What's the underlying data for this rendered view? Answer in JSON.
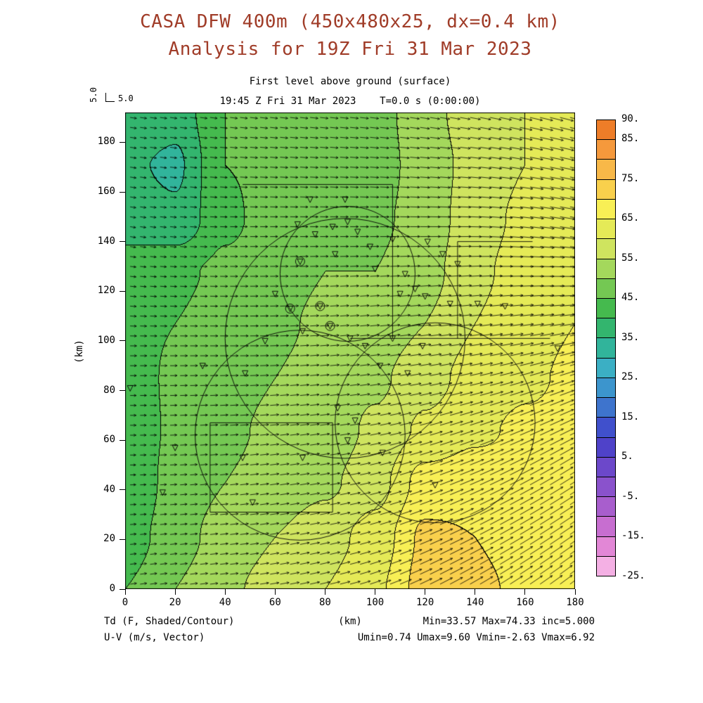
{
  "header": {
    "title": "CASA DFW 400m (450x480x25, dx=0.4 km)",
    "subtitle": "Analysis for 19Z Fri 31 Mar 2023",
    "level_line": "First level above ground (surface)",
    "time_line": "19:45 Z Fri 31 Mar 2023    T=0.0 s (0:00:00)",
    "title_color": "#a03c28"
  },
  "vector_key": {
    "vertical_label": "5.0",
    "horizontal_label": "5.0",
    "reference_speed_ms": 5.0
  },
  "axes": {
    "x_label": "(km)",
    "y_label": "(km)",
    "x_ticks": [
      0,
      20,
      40,
      60,
      80,
      100,
      120,
      140,
      160,
      180
    ],
    "y_ticks": [
      0,
      20,
      40,
      60,
      80,
      100,
      120,
      140,
      160,
      180
    ],
    "x_range": [
      0,
      180
    ],
    "y_range": [
      0,
      192
    ]
  },
  "footer": {
    "field_label": "Td (F, Shaded/Contour)",
    "vector_label": "U-V (m/s, Vector)",
    "x_unit": "(km)",
    "stats_line1": "Min=33.57 Max=74.33 inc=5.000",
    "stats_line2": "Umin=0.74 Umax=9.60 Vmin=-2.63 Vmax=6.92"
  },
  "chart_data": {
    "type": "heatmap",
    "title": "CASA DFW 400m (450x480x25, dx=0.4 km)",
    "subtitle": "Analysis for 19Z Fri 31 Mar 2023",
    "xlabel": "(km)",
    "ylabel": "(km)",
    "xlim": [
      0,
      180
    ],
    "ylim": [
      0,
      192
    ],
    "legend_position": "right-colorbar",
    "grid": false,
    "field": {
      "name": "Td",
      "units": "F",
      "min": 33.57,
      "max": 74.33,
      "contour_interval": 5.0,
      "x": [
        0,
        20,
        40,
        60,
        80,
        100,
        120,
        140,
        160,
        180
      ],
      "y": [
        0,
        21,
        43,
        64,
        85,
        107,
        128,
        149,
        171,
        192
      ],
      "values": [
        [
          45,
          50,
          54,
          57,
          60,
          64,
          72,
          71,
          69,
          69
        ],
        [
          42,
          48,
          52,
          55,
          58,
          62,
          71,
          70,
          68,
          69
        ],
        [
          40,
          47,
          50,
          52,
          54,
          58,
          67,
          68,
          67,
          68
        ],
        [
          41,
          46,
          49,
          51,
          52,
          56,
          61,
          64,
          66,
          67
        ],
        [
          42,
          46,
          48,
          50,
          52,
          54,
          58,
          62,
          64,
          66
        ],
        [
          43,
          45,
          47,
          49,
          51,
          52,
          55,
          60,
          63,
          65
        ],
        [
          42,
          44,
          46,
          48,
          50,
          50,
          53,
          59,
          62,
          64
        ],
        [
          38,
          36,
          44,
          47,
          48,
          49,
          52,
          58,
          61,
          63
        ],
        [
          36,
          34,
          45,
          46,
          47,
          48,
          52,
          57,
          60,
          62
        ],
        [
          40,
          37,
          45,
          46,
          47,
          48,
          53,
          58,
          60,
          61
        ]
      ]
    },
    "wind": {
      "units": "m/s",
      "umin": 0.74,
      "umax": 9.6,
      "vmin": -2.63,
      "vmax": 6.92,
      "reference_speed": 5.0,
      "arrow_spacing_km": 4,
      "x": [
        0,
        45,
        90,
        135,
        180
      ],
      "y": [
        0,
        48,
        96,
        144,
        192
      ],
      "u": [
        [
          3.5,
          4.5,
          5.5,
          7.0,
          6.5
        ],
        [
          3.0,
          4.5,
          5.5,
          7.5,
          7.0
        ],
        [
          3.5,
          4.5,
          5.0,
          6.5,
          8.0
        ],
        [
          3.0,
          4.0,
          4.5,
          6.0,
          8.5
        ],
        [
          3.5,
          4.0,
          4.5,
          5.5,
          7.5
        ]
      ],
      "v": [
        [
          0.5,
          0.5,
          1.5,
          4.0,
          5.0
        ],
        [
          0.0,
          0.5,
          1.0,
          3.0,
          4.5
        ],
        [
          0.0,
          0.0,
          0.5,
          1.0,
          2.0
        ],
        [
          -0.5,
          0.0,
          0.0,
          0.0,
          -1.5
        ],
        [
          -0.5,
          -0.5,
          -0.5,
          -1.0,
          -2.0
        ]
      ]
    },
    "colorbar": {
      "min": -25,
      "max": 90,
      "step": 5,
      "colors_low_to_high": [
        "#f4b0e4",
        "#e287d6",
        "#c76ed0",
        "#a85ecd",
        "#8a52cc",
        "#6c48ca",
        "#4f42c9",
        "#4050cc",
        "#3e74cd",
        "#3c95cd",
        "#3bafc4",
        "#31b49b",
        "#33b56e",
        "#45ba4e",
        "#74c853",
        "#a4d85c",
        "#cfe45f",
        "#e5ea57",
        "#f8ef55",
        "#f9d04c",
        "#f8b848",
        "#f5993c",
        "#ee7d28"
      ],
      "labels": [
        {
          "value": 90,
          "text": "90."
        },
        {
          "value": 85,
          "text": "85."
        },
        {
          "value": 75,
          "text": "75."
        },
        {
          "value": 65,
          "text": "65."
        },
        {
          "value": 55,
          "text": "55."
        },
        {
          "value": 45,
          "text": "45."
        },
        {
          "value": 35,
          "text": "35."
        },
        {
          "value": 25,
          "text": "25."
        },
        {
          "value": 15,
          "text": "15."
        },
        {
          "value": 5,
          "text": "5."
        },
        {
          "value": -5,
          "text": "-5."
        },
        {
          "value": -15,
          "text": "-15."
        },
        {
          "value": -25,
          "text": "-25."
        }
      ]
    },
    "markers": {
      "symbol": "open-down-triangle",
      "points": [
        [
          69,
          147
        ],
        [
          76,
          143
        ],
        [
          83,
          146
        ],
        [
          89,
          148
        ],
        [
          93,
          144
        ],
        [
          84,
          135
        ],
        [
          98,
          138
        ],
        [
          107,
          141
        ],
        [
          121,
          140
        ],
        [
          127,
          135
        ],
        [
          112,
          127
        ],
        [
          116,
          121
        ],
        [
          110,
          119
        ],
        [
          120,
          118
        ],
        [
          60,
          119
        ],
        [
          71,
          104
        ],
        [
          90,
          101
        ],
        [
          96,
          98
        ],
        [
          107,
          101
        ],
        [
          119,
          98
        ],
        [
          130,
          115
        ],
        [
          133,
          131
        ],
        [
          141,
          115
        ],
        [
          152,
          114
        ],
        [
          173,
          97
        ],
        [
          31,
          90
        ],
        [
          48,
          87
        ],
        [
          2,
          81
        ],
        [
          20,
          57
        ],
        [
          47,
          53
        ],
        [
          71,
          53
        ],
        [
          89,
          60
        ],
        [
          103,
          55
        ],
        [
          15,
          39
        ],
        [
          51,
          35
        ],
        [
          124,
          42
        ],
        [
          102,
          90
        ],
        [
          113,
          87
        ],
        [
          85,
          73
        ],
        [
          92,
          68
        ],
        [
          56,
          100
        ],
        [
          100,
          129
        ],
        [
          88,
          157
        ],
        [
          74,
          157
        ]
      ],
      "circled_points": [
        [
          78,
          114
        ],
        [
          82,
          106
        ],
        [
          66,
          113
        ],
        [
          70,
          132
        ]
      ]
    },
    "overlays": {
      "boundary_segments": [
        [
          [
            47,
            163
          ],
          [
            107,
            163
          ]
        ],
        [
          [
            107,
            101
          ],
          [
            107,
            163
          ]
        ],
        [
          [
            90,
            101
          ],
          [
            170,
            101
          ]
        ],
        [
          [
            133,
            101
          ],
          [
            133,
            140
          ]
        ],
        [
          [
            133,
            140
          ],
          [
            163,
            140
          ]
        ],
        [
          [
            34,
            31
          ],
          [
            34,
            67
          ]
        ],
        [
          [
            34,
            67
          ],
          [
            83,
            67
          ]
        ],
        [
          [
            83,
            31
          ],
          [
            83,
            67
          ]
        ],
        [
          [
            34,
            31
          ],
          [
            83,
            31
          ]
        ]
      ],
      "range_circles": [
        {
          "cx": 88,
          "cy": 101,
          "r": 48
        },
        {
          "cx": 70,
          "cy": 62,
          "r": 42
        },
        {
          "cx": 124,
          "cy": 67,
          "r": 40
        },
        {
          "cx": 89,
          "cy": 127,
          "r": 27
        }
      ]
    }
  }
}
